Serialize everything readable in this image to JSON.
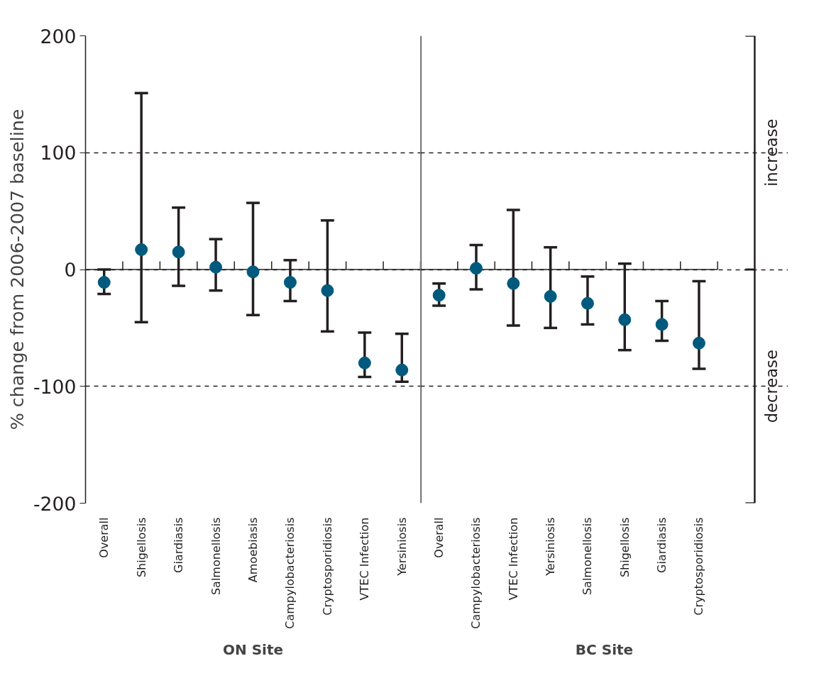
{
  "chart_data": [
    {
      "type": "scatter",
      "ylabel": "% change from 2006-2007 baseline",
      "xlabel": "ON Site",
      "categories": [
        "Overall",
        "Shigellosis",
        "Giardiasis",
        "Salmonellosis",
        "Amoebiasis",
        "Campylobacteriosis",
        "Cryptosporidiosis",
        "VTEC Infection",
        "Yersiniosis"
      ],
      "values": [
        -11,
        17,
        15,
        2,
        -2,
        -11,
        -18,
        -80,
        -86
      ],
      "errors": [
        [
          -21,
          0
        ],
        [
          -45,
          151
        ],
        [
          -14,
          53
        ],
        [
          -18,
          26
        ],
        [
          -39,
          57
        ],
        [
          -27,
          8
        ],
        [
          -53,
          42
        ],
        [
          -92,
          -54
        ],
        [
          -96,
          -55
        ]
      ],
      "color": "#005a7d",
      "marker": "circle",
      "ylim": [
        -200,
        200
      ],
      "yticks": [
        -200,
        -100,
        0,
        100,
        200
      ],
      "grid": "y"
    },
    {
      "type": "scatter",
      "xlabel": "BC Site",
      "categories": [
        "Overall",
        "Campylobacteriosis",
        "VTEC Infection",
        "Yersiniosis",
        "Salmonellosis",
        "Shigellosis",
        "Giardiasis",
        "Cryptosporidiosis"
      ],
      "values": [
        -22,
        1,
        -12,
        -23,
        -29,
        -43,
        -47,
        -63
      ],
      "errors": [
        [
          -31,
          -12
        ],
        [
          -17,
          21
        ],
        [
          -48,
          51
        ],
        [
          -50,
          19
        ],
        [
          -47,
          -6
        ],
        [
          -69,
          5
        ],
        [
          -61,
          -27
        ],
        [
          -85,
          -10
        ]
      ],
      "color": "#005a7d",
      "marker": "circle",
      "ylim": [
        -200,
        200
      ],
      "yticks": [
        -200,
        -100,
        0,
        100,
        200
      ],
      "grid": "y",
      "tick_labels": "x",
      "annotations": [
        "increase",
        "decrease"
      ]
    }
  ]
}
